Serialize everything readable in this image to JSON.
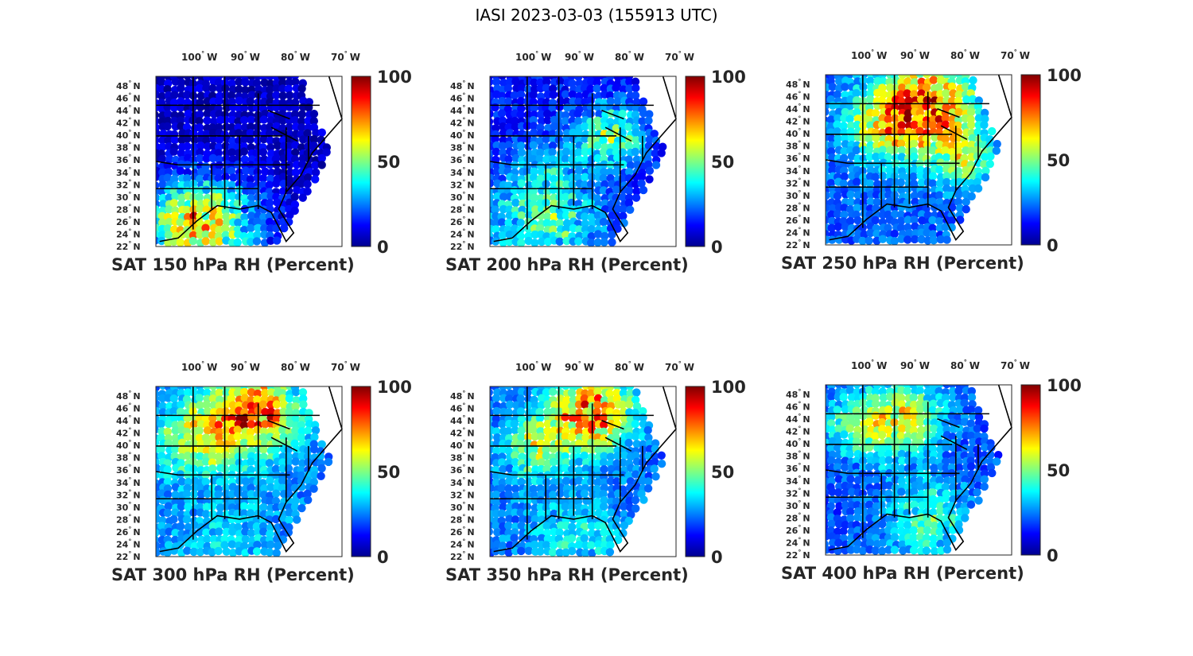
{
  "figure_title": "IASI 2023-03-03 (155913 UTC)",
  "colormap": "jet",
  "colors": {
    "jet": [
      "#00008f",
      "#0000ff",
      "#0080ff",
      "#00ffff",
      "#80ff80",
      "#ffff00",
      "#ff8000",
      "#ff0000",
      "#800000"
    ],
    "state_lines": "#000000",
    "no_data": "#ffffff"
  },
  "lon_ticks": [
    {
      "value": "100",
      "deg": "°",
      "hemi": "W"
    },
    {
      "value": "90",
      "deg": "°",
      "hemi": "W"
    },
    {
      "value": "80",
      "deg": "°",
      "hemi": "W"
    },
    {
      "value": "70",
      "deg": "°",
      "hemi": "W"
    }
  ],
  "lat_ticks": [
    {
      "value": "48",
      "deg": "°",
      "hemi": "N"
    },
    {
      "value": "46",
      "deg": "°",
      "hemi": "N"
    },
    {
      "value": "44",
      "deg": "°",
      "hemi": "N"
    },
    {
      "value": "42",
      "deg": "°",
      "hemi": "N"
    },
    {
      "value": "40",
      "deg": "°",
      "hemi": "N"
    },
    {
      "value": "38",
      "deg": "°",
      "hemi": "N"
    },
    {
      "value": "36",
      "deg": "°",
      "hemi": "N"
    },
    {
      "value": "34",
      "deg": "°",
      "hemi": "N"
    },
    {
      "value": "32",
      "deg": "°",
      "hemi": "N"
    },
    {
      "value": "30",
      "deg": "°",
      "hemi": "N"
    },
    {
      "value": "28",
      "deg": "°",
      "hemi": "N"
    },
    {
      "value": "26",
      "deg": "°",
      "hemi": "N"
    },
    {
      "value": "24",
      "deg": "°",
      "hemi": "N"
    },
    {
      "value": "22",
      "deg": "°",
      "hemi": "N"
    }
  ],
  "colorbar": {
    "range": [
      0,
      100
    ],
    "tick_labels": [
      "100",
      "50",
      "0"
    ]
  },
  "panels": [
    {
      "title": "SAT 150 hPa RH (Percent)",
      "level": "150 hPa",
      "base_rh": 6,
      "hotspots": [
        [
          0.3,
          0.88,
          0.3,
          40
        ],
        [
          0.15,
          0.85,
          0.2,
          30
        ]
      ]
    },
    {
      "title": "SAT 200 hPa RH (Percent)",
      "level": "200 hPa",
      "base_rh": 14,
      "hotspots": [
        [
          0.65,
          0.35,
          0.18,
          35
        ],
        [
          0.3,
          0.85,
          0.3,
          30
        ],
        [
          0.3,
          0.55,
          0.2,
          10
        ]
      ]
    },
    {
      "title": "SAT 250 hPa RH (Percent)",
      "level": "250 hPa",
      "base_rh": 22,
      "hotspots": [
        [
          0.55,
          0.2,
          0.25,
          60
        ],
        [
          0.3,
          0.3,
          0.2,
          30
        ],
        [
          0.75,
          0.5,
          0.15,
          30
        ]
      ]
    },
    {
      "title": "SAT 300 hPa RH (Percent)",
      "level": "300 hPa",
      "base_rh": 24,
      "hotspots": [
        [
          0.55,
          0.15,
          0.22,
          55
        ],
        [
          0.25,
          0.3,
          0.22,
          35
        ],
        [
          0.4,
          0.9,
          0.3,
          10
        ]
      ]
    },
    {
      "title": "SAT 350 hPa RH (Percent)",
      "level": "350 hPa",
      "base_rh": 22,
      "hotspots": [
        [
          0.55,
          0.15,
          0.22,
          55
        ],
        [
          0.25,
          0.35,
          0.18,
          30
        ],
        [
          0.45,
          0.9,
          0.3,
          15
        ]
      ]
    },
    {
      "title": "SAT 400 hPa RH (Percent)",
      "level": "400 hPa",
      "base_rh": 20,
      "hotspots": [
        [
          0.4,
          0.2,
          0.22,
          40
        ],
        [
          0.55,
          0.8,
          0.22,
          25
        ],
        [
          0.15,
          0.25,
          0.18,
          20
        ]
      ]
    }
  ]
}
